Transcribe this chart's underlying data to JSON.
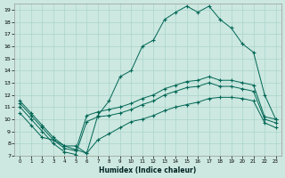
{
  "xlabel": "Humidex (Indice chaleur)",
  "bg_color": "#cce8e0",
  "grid_color": "#aad4cc",
  "line_color": "#006655",
  "xlim": [
    -0.5,
    23.5
  ],
  "ylim": [
    7,
    19.5
  ],
  "xticks": [
    0,
    1,
    2,
    3,
    4,
    5,
    6,
    7,
    8,
    9,
    10,
    11,
    12,
    13,
    14,
    15,
    16,
    17,
    18,
    19,
    20,
    21,
    22,
    23
  ],
  "yticks": [
    7,
    8,
    9,
    10,
    11,
    12,
    13,
    14,
    15,
    16,
    17,
    18,
    19
  ],
  "curve_main": {
    "x": [
      0,
      1,
      2,
      3,
      4,
      5,
      6,
      7,
      8,
      9,
      10,
      11,
      12,
      13,
      14,
      15,
      16,
      17,
      18,
      19,
      20,
      21,
      22,
      23
    ],
    "y": [
      11.5,
      10.5,
      9.5,
      8.5,
      7.8,
      7.5,
      7.2,
      10.3,
      11.5,
      13.5,
      14.0,
      16.0,
      16.5,
      18.2,
      18.8,
      19.3,
      18.8,
      19.3,
      18.2,
      17.5,
      16.2,
      15.5,
      12.0,
      10.0
    ]
  },
  "curve_upper": {
    "x": [
      0,
      1,
      2,
      3,
      4,
      5,
      6,
      7,
      8,
      9,
      10,
      11,
      12,
      13,
      14,
      15,
      16,
      17,
      18,
      19,
      20,
      21,
      22,
      23
    ],
    "y": [
      11.3,
      10.3,
      9.3,
      8.3,
      7.6,
      7.4,
      10.3,
      10.6,
      10.8,
      11.0,
      11.3,
      11.7,
      12.0,
      12.5,
      12.8,
      13.1,
      13.2,
      13.5,
      13.2,
      13.2,
      13.0,
      12.8,
      10.2,
      10.0
    ]
  },
  "curve_mid": {
    "x": [
      0,
      1,
      2,
      3,
      4,
      5,
      6,
      7,
      8,
      9,
      10,
      11,
      12,
      13,
      14,
      15,
      16,
      17,
      18,
      19,
      20,
      21,
      22,
      23
    ],
    "y": [
      11.0,
      10.0,
      9.0,
      8.0,
      7.3,
      7.1,
      9.8,
      10.2,
      10.3,
      10.5,
      10.8,
      11.2,
      11.5,
      12.0,
      12.3,
      12.6,
      12.7,
      13.0,
      12.7,
      12.7,
      12.5,
      12.3,
      10.0,
      9.7
    ]
  },
  "curve_lower": {
    "x": [
      0,
      1,
      2,
      3,
      4,
      5,
      6,
      7,
      8,
      9,
      10,
      11,
      12,
      13,
      14,
      15,
      16,
      17,
      18,
      19,
      20,
      21,
      22,
      23
    ],
    "y": [
      10.5,
      9.5,
      8.5,
      8.3,
      7.8,
      7.8,
      7.2,
      8.3,
      8.8,
      9.3,
      9.8,
      10.0,
      10.3,
      10.7,
      11.0,
      11.2,
      11.4,
      11.7,
      11.8,
      11.8,
      11.7,
      11.5,
      9.7,
      9.3
    ]
  }
}
